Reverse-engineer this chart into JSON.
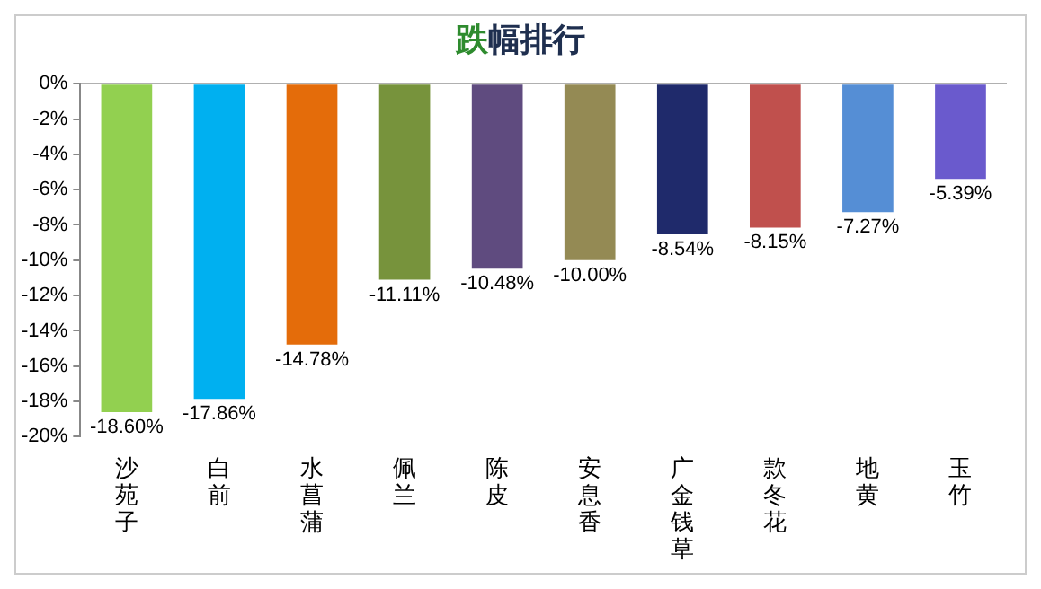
{
  "chart_data": {
    "type": "bar",
    "title": "跌幅排行",
    "categories": [
      "沙苑子",
      "白前",
      "水菖蒲",
      "佩兰",
      "陈皮",
      "安息香",
      "广金钱草",
      "款冬花",
      "地黄",
      "玉竹"
    ],
    "values": [
      -18.6,
      -17.86,
      -14.78,
      -11.11,
      -10.48,
      -10.0,
      -8.54,
      -8.15,
      -7.27,
      -5.39
    ],
    "value_labels": [
      "-18.60%",
      "-17.86%",
      "-14.78%",
      "-11.11%",
      "-10.48%",
      "-10.00%",
      "-8.54%",
      "-8.15%",
      "-7.27%",
      "-5.39%"
    ],
    "colors": [
      "#92d050",
      "#00b0f0",
      "#e46c0a",
      "#77933c",
      "#5f4b7f",
      "#948a54",
      "#1f2a6b",
      "#c0504d",
      "#558ed5",
      "#6a5acd"
    ],
    "ylim": [
      -20,
      0
    ],
    "yticks": [
      {
        "value": 0,
        "label": "0%"
      },
      {
        "value": -2,
        "label": "-2%"
      },
      {
        "value": -4,
        "label": "-4%"
      },
      {
        "value": -6,
        "label": "-6%"
      },
      {
        "value": -8,
        "label": "-8%"
      },
      {
        "value": -10,
        "label": "-10%"
      },
      {
        "value": -12,
        "label": "-12%"
      },
      {
        "value": -14,
        "label": "-14%"
      },
      {
        "value": -16,
        "label": "-16%"
      },
      {
        "value": -18,
        "label": "-18%"
      },
      {
        "value": -20,
        "label": "-20%"
      }
    ],
    "legend": false
  }
}
